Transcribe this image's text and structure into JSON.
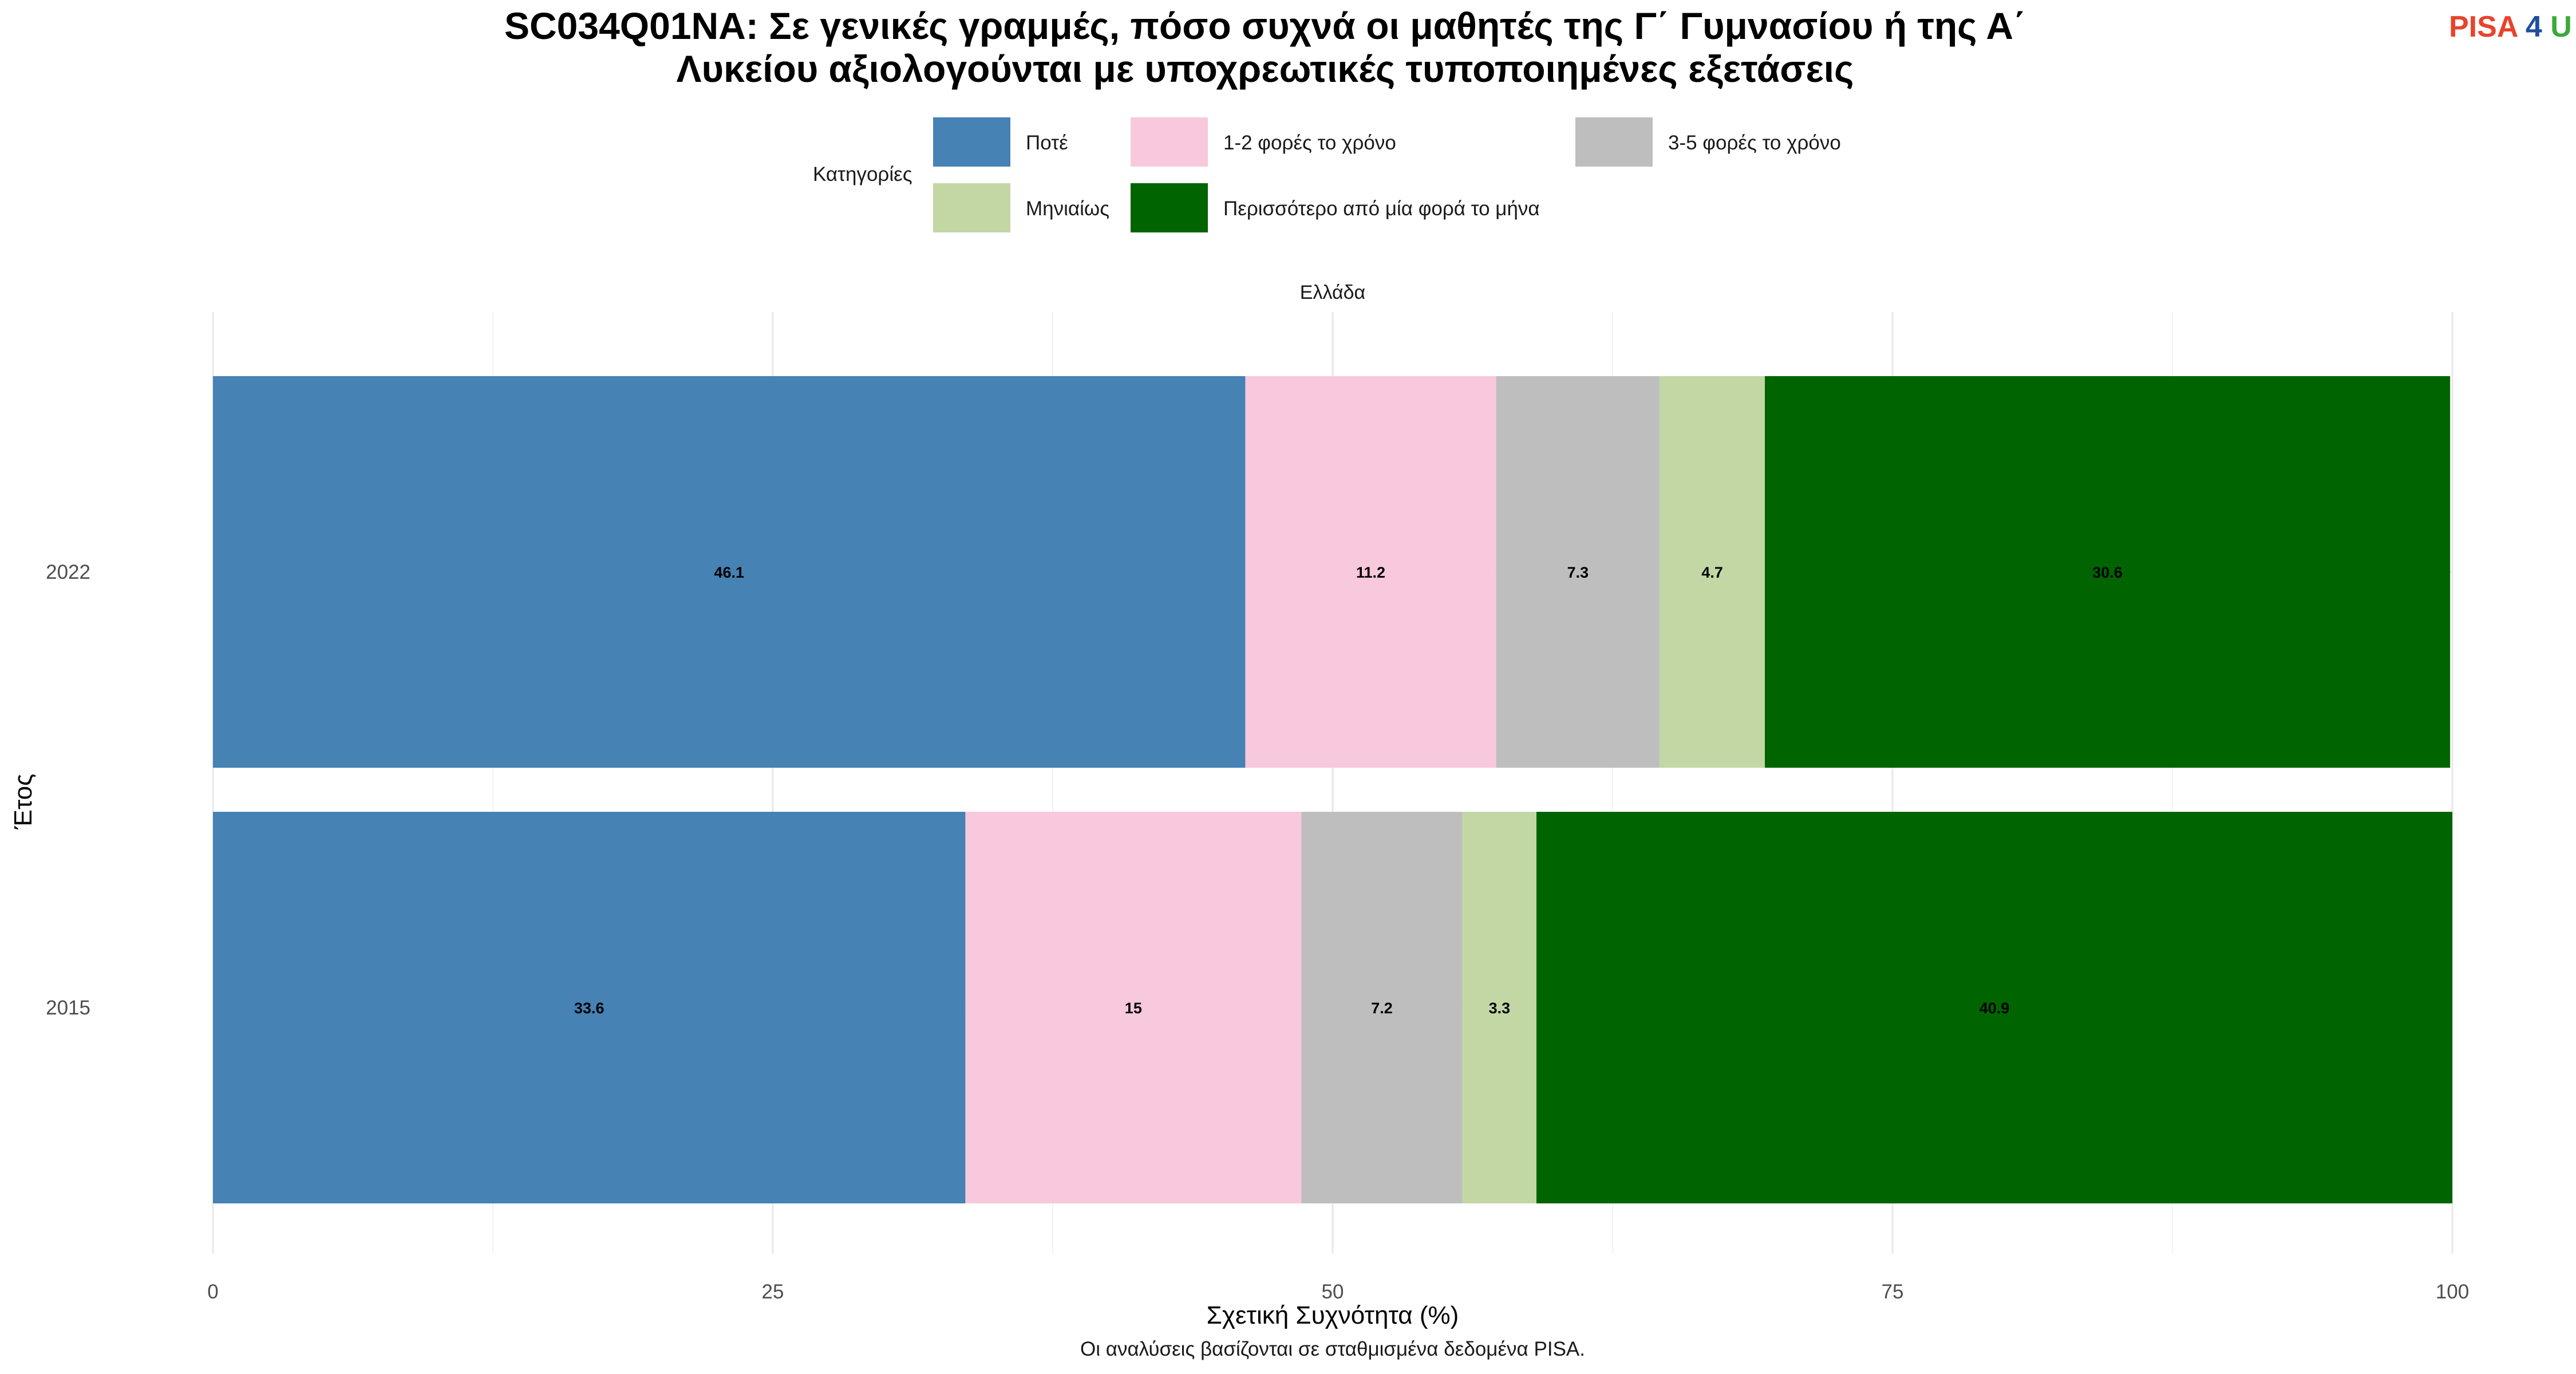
{
  "title_line1": "SC034Q01NA: Σε γενικές γραμμές, πόσο συχνά οι μαθητές της Γ΄ Γυμνασίου ή της Α΄",
  "title_line2": "Λυκείου αξιολογούνται με υποχρεωτικές τυποποιημένες εξετάσεις",
  "logo": {
    "part1": "PISA",
    "part2": "4",
    "part3": "U",
    "color1": "#e8432d",
    "color2": "#1f4e9c",
    "color3": "#3aaa35"
  },
  "legend_title": "Κατηγορίες",
  "strip_label": "Ελλάδα",
  "caption": "Οι αναλύσεις βασίζονται σε σταθμισμένα δεδομένα PISA.",
  "chart_data": {
    "type": "bar",
    "orientation": "horizontal",
    "stacked": true,
    "categories": [
      "2022",
      "2015"
    ],
    "series": [
      {
        "name": "Ποτέ",
        "color": "#4682b4",
        "values": [
          46.1,
          33.6
        ]
      },
      {
        "name": "1-2 φορές το χρόνο",
        "color": "#f8c8dc",
        "values": [
          11.2,
          15
        ]
      },
      {
        "name": "3-5 φορές το χρόνο",
        "color": "#bebebe",
        "values": [
          7.3,
          7.2
        ]
      },
      {
        "name": "Μηνιαίως",
        "color": "#c3d7a4",
        "values": [
          4.7,
          3.3
        ]
      },
      {
        "name": "Περισσότερο από μία φορά το μήνα",
        "color": "#006400",
        "values": [
          30.6,
          40.9
        ]
      }
    ],
    "xlabel": "Σχετική Συχνότητα (%)",
    "ylabel": "Έτος",
    "xlim": [
      0,
      100
    ],
    "xticks": [
      "0",
      "25",
      "50",
      "75",
      "100"
    ],
    "grid": true,
    "legend_position": "top"
  }
}
